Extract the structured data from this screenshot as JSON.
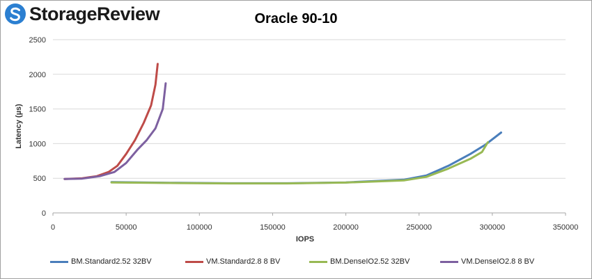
{
  "brand": {
    "name": "StorageReview"
  },
  "chart_data": {
    "type": "line",
    "title": "Oracle 90-10",
    "xlabel": "IOPS",
    "ylabel": "Latency (µs)",
    "xlim": [
      0,
      350000
    ],
    "ylim": [
      0,
      2500
    ],
    "x_ticks": [
      "0",
      "50000",
      "100000",
      "150000",
      "200000",
      "250000",
      "300000",
      "350000"
    ],
    "y_ticks": [
      "0",
      "500",
      "1000",
      "1500",
      "2000",
      "2500"
    ],
    "grid": "horizontal",
    "legend_position": "bottom",
    "series": [
      {
        "name": "BM.Standard2.52 32BV",
        "color": "#4a7ebb",
        "points": [
          [
            40000,
            445
          ],
          [
            80000,
            435
          ],
          [
            120000,
            428
          ],
          [
            160000,
            428
          ],
          [
            200000,
            440
          ],
          [
            240000,
            480
          ],
          [
            255000,
            540
          ],
          [
            270000,
            680
          ],
          [
            285000,
            850
          ],
          [
            295000,
            980
          ],
          [
            306000,
            1160
          ]
        ]
      },
      {
        "name": "VM.Standard2.8 8 BV",
        "color": "#be4b48",
        "points": [
          [
            8000,
            490
          ],
          [
            20000,
            500
          ],
          [
            30000,
            530
          ],
          [
            38000,
            590
          ],
          [
            44000,
            680
          ],
          [
            50000,
            850
          ],
          [
            56000,
            1050
          ],
          [
            62000,
            1300
          ],
          [
            67000,
            1550
          ],
          [
            70000,
            1850
          ],
          [
            71500,
            2150
          ]
        ]
      },
      {
        "name": "BM.DenseIO2.52 32BV",
        "color": "#98b954",
        "points": [
          [
            40000,
            440
          ],
          [
            80000,
            432
          ],
          [
            120000,
            426
          ],
          [
            160000,
            426
          ],
          [
            200000,
            438
          ],
          [
            240000,
            470
          ],
          [
            255000,
            520
          ],
          [
            270000,
            640
          ],
          [
            285000,
            780
          ],
          [
            293000,
            880
          ],
          [
            297000,
            1020
          ]
        ]
      },
      {
        "name": "VM.DenseIO2.8 8 BV",
        "color": "#7d60a0",
        "points": [
          [
            8000,
            490
          ],
          [
            20000,
            495
          ],
          [
            32000,
            530
          ],
          [
            42000,
            590
          ],
          [
            50000,
            720
          ],
          [
            58000,
            920
          ],
          [
            64000,
            1050
          ],
          [
            70000,
            1220
          ],
          [
            75000,
            1500
          ],
          [
            77000,
            1870
          ]
        ]
      }
    ]
  }
}
